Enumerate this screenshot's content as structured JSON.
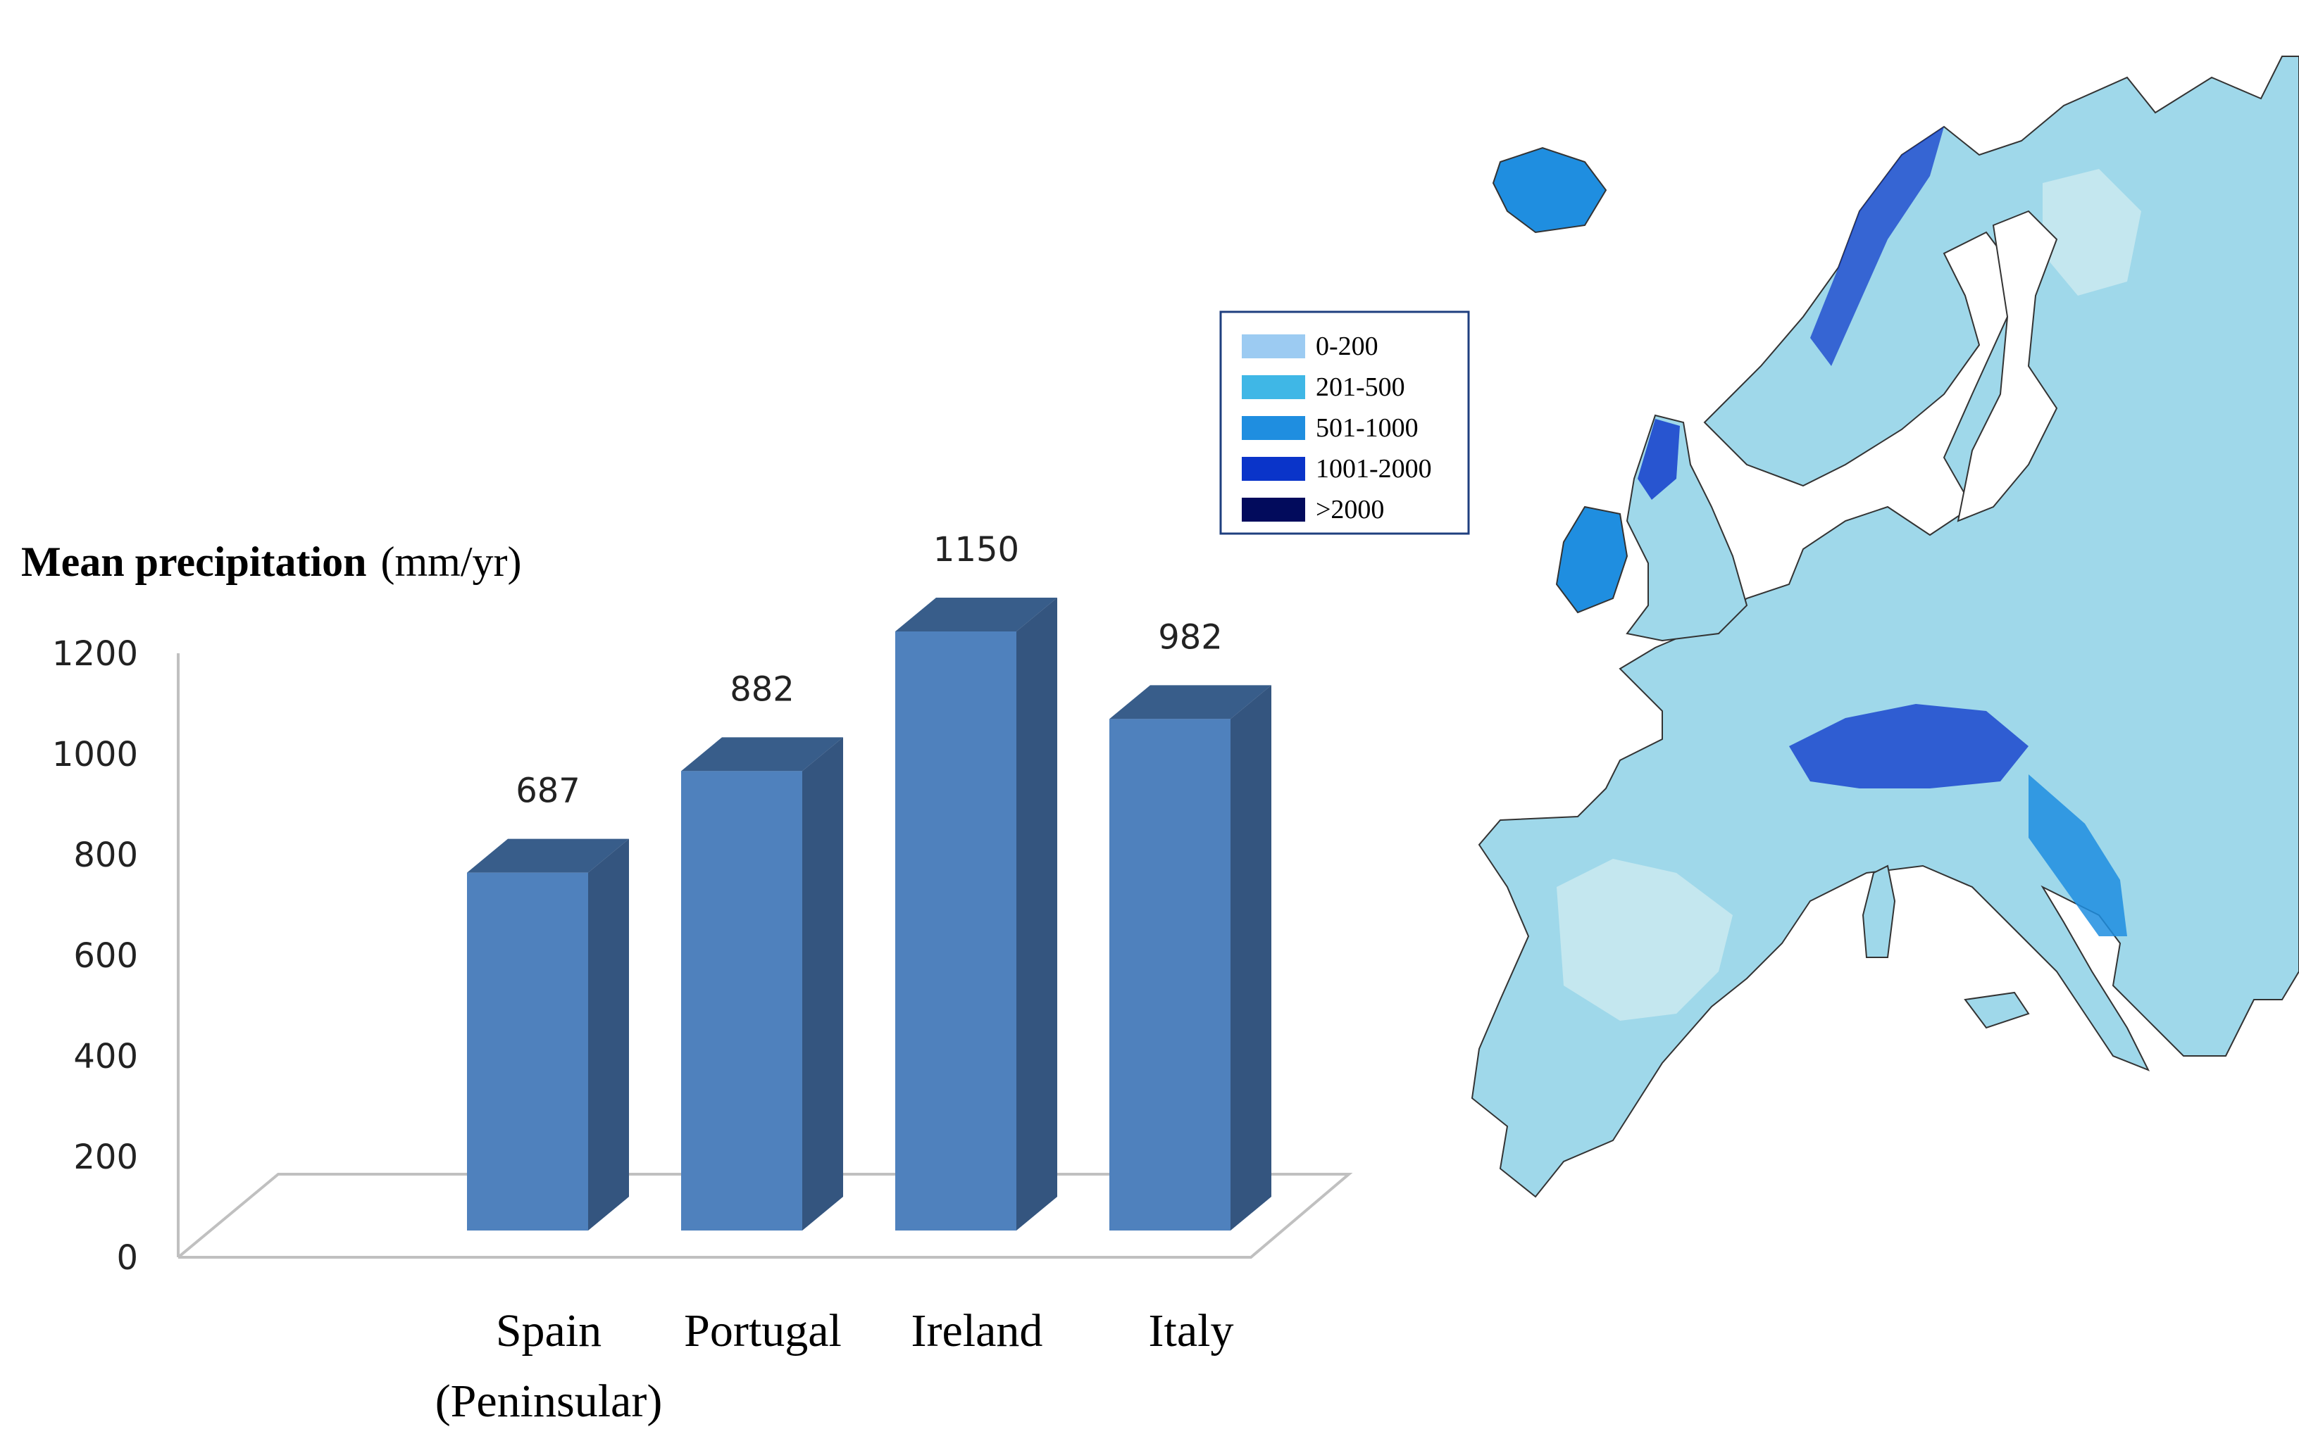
{
  "chart_data": {
    "type": "bar",
    "title_bold": "Mean precipitation",
    "title_unit": "(mm/yr)",
    "categories": [
      [
        "Spain",
        "(Peninsular)"
      ],
      [
        "Portugal"
      ],
      [
        "Ireland"
      ],
      [
        "Italy"
      ]
    ],
    "values": [
      687,
      882,
      1150,
      982
    ],
    "data_labels": [
      "687",
      "882",
      "1150",
      "982"
    ],
    "yticks": [
      "0",
      "200",
      "400",
      "600",
      "800",
      "1000",
      "1200"
    ],
    "ylim": [
      0,
      1200
    ],
    "grid": false,
    "bar_colors": {
      "front": "#4f81bd",
      "side": "#34557f",
      "top": "#385d8a"
    }
  },
  "map": {
    "land_color": "#9fd8ea",
    "legend": [
      {
        "label": "0-200",
        "color": "#9ccbf2"
      },
      {
        "label": "201-500",
        "color": "#3fb7e6"
      },
      {
        "label": "501-1000",
        "color": "#1f8ee0"
      },
      {
        "label": "1001-2000",
        "color": "#0a34c9"
      },
      {
        "label": ">2000",
        "color": "#020b5c"
      }
    ]
  }
}
